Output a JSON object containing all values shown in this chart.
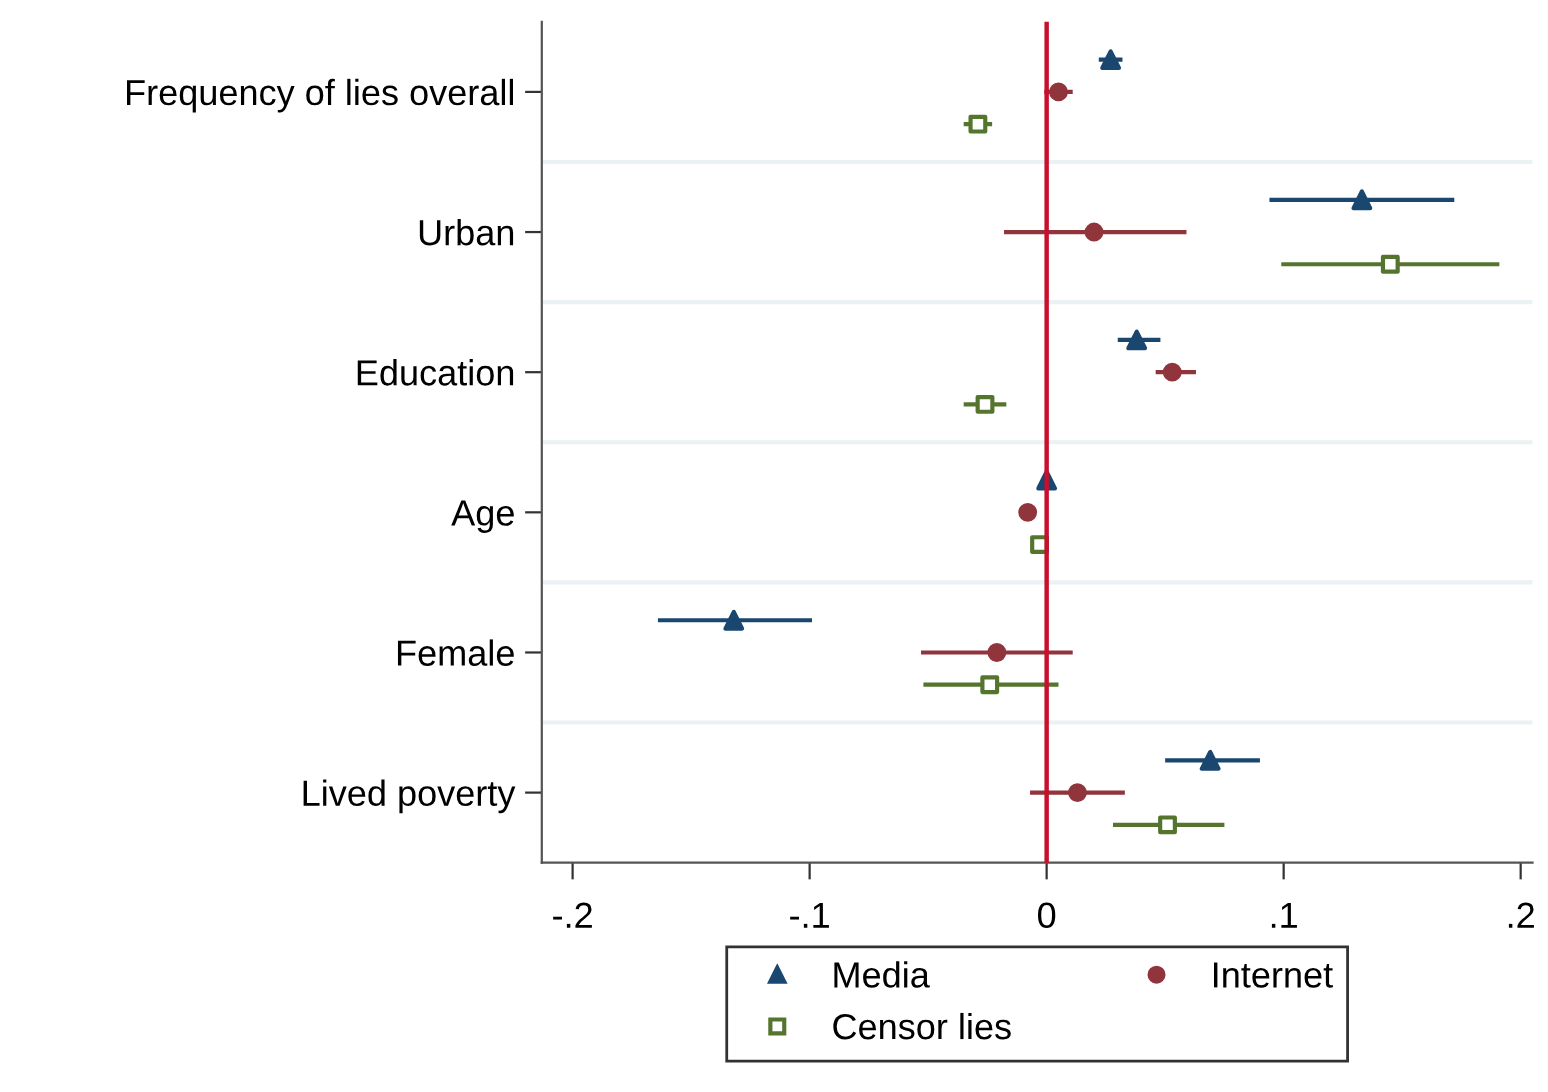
{
  "chart_data": {
    "type": "scatter",
    "orientation": "horizontal",
    "categories": [
      "Frequency of lies overall",
      "Urban",
      "Education",
      "Age",
      "Female",
      "Lived poverty"
    ],
    "series": [
      {
        "name": "Media",
        "color": "#1a476f",
        "marker": "triangle",
        "values": [
          0.027,
          0.133,
          0.038,
          0.0,
          -0.132,
          0.069
        ],
        "errors": [
          [
            0.022,
            0.032
          ],
          [
            0.094,
            0.172
          ],
          [
            0.03,
            0.048
          ],
          null,
          [
            -0.164,
            -0.099
          ],
          [
            0.05,
            0.09
          ]
        ]
      },
      {
        "name": "Internet",
        "color": "#90353b",
        "marker": "circle",
        "values": [
          0.005,
          0.02,
          0.053,
          -0.008,
          -0.021,
          0.013
        ],
        "errors": [
          [
            -0.001,
            0.011
          ],
          [
            -0.018,
            0.059
          ],
          [
            0.046,
            0.063
          ],
          null,
          [
            -0.053,
            0.011
          ],
          [
            -0.007,
            0.033
          ]
        ]
      },
      {
        "name": "Censor lies",
        "color": "#55752f",
        "marker": "square",
        "values": [
          -0.029,
          0.145,
          -0.026,
          -0.003,
          -0.024,
          0.051
        ],
        "errors": [
          [
            -0.035,
            -0.023
          ],
          [
            0.099,
            0.191
          ],
          [
            -0.035,
            -0.017
          ],
          null,
          [
            -0.052,
            0.005
          ],
          [
            0.028,
            0.075
          ]
        ]
      }
    ],
    "xlim": [
      -0.213,
      0.205
    ],
    "xticks": [
      {
        "value": -0.2,
        "label": "-.2"
      },
      {
        "value": -0.1,
        "label": "-.1"
      },
      0,
      {
        "value": 0.1,
        "label": ".1"
      },
      {
        "value": 0.2,
        "label": ".2"
      }
    ],
    "ref_lines": [
      {
        "axis": "x",
        "value": 0,
        "color": "#c8102e"
      }
    ],
    "grid": "y",
    "legend": "bottom"
  }
}
